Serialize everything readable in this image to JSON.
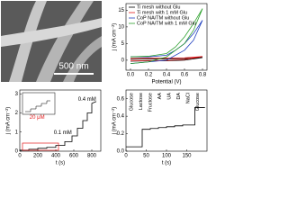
{
  "image": {
    "scale_bar": "500 nm"
  },
  "chart_data": [
    {
      "type": "line",
      "x_label": "Potential (V)",
      "y_label": "j (mA cm⁻²)",
      "xlim": [
        -0.05,
        0.85
      ],
      "xticks": [
        {
          "value": 0,
          "label": "0.0"
        },
        0.2,
        0.4,
        0.6,
        0.8
      ],
      "ylim": [
        -3,
        17
      ],
      "yticks": [
        0,
        5,
        10,
        15
      ],
      "legend": "top-left",
      "series": [
        {
          "name": "Ti mesh without Glu",
          "color": "#000000",
          "x": [
            0,
            0.2,
            0.4,
            0.6,
            0.8,
            0.6,
            0.4,
            0.2,
            0
          ],
          "values": [
            0.3,
            0.4,
            0.4,
            0.5,
            0.8,
            0,
            -0.2,
            -0.2,
            -0.3
          ]
        },
        {
          "name": "Ti mesh with 1 mM Glu",
          "color": "#e31a1c",
          "x": [
            0,
            0.2,
            0.4,
            0.6,
            0.8,
            0.6,
            0.4,
            0.2,
            0
          ],
          "values": [
            0.5,
            0.6,
            0.6,
            0.7,
            1.1,
            0.2,
            -0.1,
            -0.1,
            -0.2
          ]
        },
        {
          "name": "CoP NA/TM without Glu",
          "color": "#1f3fbf",
          "x": [
            0,
            0.2,
            0.4,
            0.5,
            0.6,
            0.7,
            0.8,
            0.7,
            0.6,
            0.4,
            0.2,
            0
          ],
          "values": [
            1,
            1,
            1.5,
            3,
            5,
            8,
            12,
            6,
            3,
            0,
            -0.5,
            -1
          ]
        },
        {
          "name": "CoP NA/TM with 1 mM Glu",
          "color": "#2ca02c",
          "x": [
            0,
            0.2,
            0.4,
            0.5,
            0.6,
            0.7,
            0.8,
            0.7,
            0.6,
            0.4,
            0.2,
            0
          ],
          "values": [
            1,
            1.2,
            2,
            4,
            7,
            11,
            15.5,
            9,
            5,
            1,
            -0.5,
            -1
          ]
        }
      ]
    },
    {
      "type": "line",
      "x_label": "t (s)",
      "y_label": "j (mA cm⁻²)",
      "xlim": [
        0,
        900
      ],
      "xticks": [
        0,
        200,
        400,
        600,
        800
      ],
      "ylim": [
        0,
        3.2
      ],
      "yticks": [
        0,
        1,
        2,
        3
      ],
      "annotations": [
        "20 μM",
        "0.1 mM",
        "0.4 mM"
      ],
      "series": [
        {
          "name": null,
          "color": "#000000",
          "x": [
            0,
            100,
            100,
            200,
            200,
            300,
            300,
            400,
            400,
            500,
            500,
            580,
            580,
            640,
            640,
            700,
            700,
            750,
            750,
            800,
            800,
            850
          ],
          "values": [
            0.05,
            0.05,
            0.1,
            0.1,
            0.15,
            0.15,
            0.2,
            0.2,
            0.3,
            0.3,
            0.5,
            0.5,
            0.8,
            0.8,
            1.2,
            1.2,
            1.6,
            1.6,
            2.0,
            2.0,
            2.5,
            2.6
          ]
        }
      ]
    },
    {
      "type": "line",
      "x_label": "t (s)",
      "y_label": "j (mA cm⁻²)",
      "xlim": [
        0,
        200
      ],
      "xticks": [
        0,
        50,
        100,
        150
      ],
      "ylim": [
        0,
        0.7
      ],
      "yticks": [
        {
          "value": 0,
          "label": "0.0"
        },
        0.2,
        0.4,
        0.6
      ],
      "annotations": [
        "Glucose",
        "Lactose",
        "Fructose",
        "AA",
        "UA",
        "DA",
        "NaCl",
        "Glucose"
      ],
      "series": [
        {
          "name": null,
          "color": "#000000",
          "x": [
            0,
            40,
            40,
            60,
            60,
            80,
            80,
            100,
            100,
            120,
            120,
            140,
            140,
            160,
            160,
            170,
            170,
            195
          ],
          "values": [
            0.05,
            0.05,
            0.25,
            0.25,
            0.26,
            0.26,
            0.27,
            0.27,
            0.28,
            0.28,
            0.29,
            0.29,
            0.3,
            0.3,
            0.3,
            0.3,
            0.5,
            0.5
          ]
        }
      ]
    }
  ]
}
